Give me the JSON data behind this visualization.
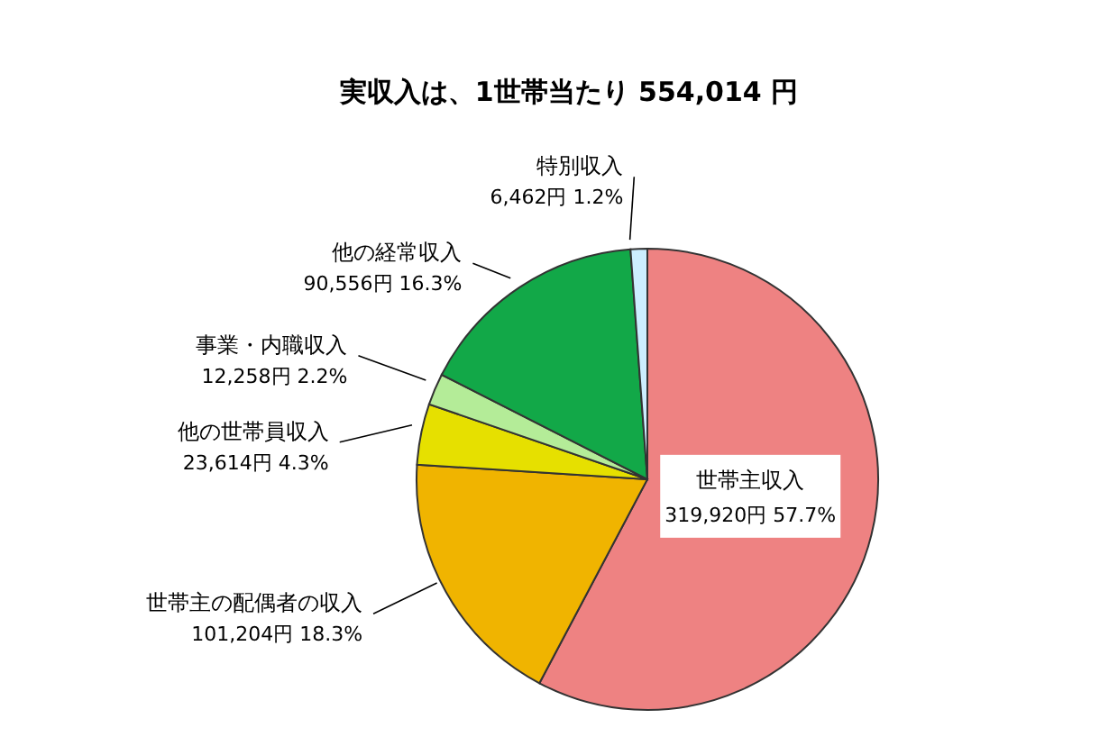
{
  "chart_data": {
    "type": "pie",
    "title": "実収入は、1世帯当たり 554,014 円",
    "categories": [
      "世帯主収入",
      "世帯主の配偶者の収入",
      "他の世帯員収入",
      "事業・内職収入",
      "他の経常収入",
      "特別収入"
    ],
    "values": [
      319920,
      101204,
      23614,
      12258,
      90556,
      6462
    ],
    "value_labels": [
      "319,920円 57.7%",
      "101,204円 18.3%",
      "23,614円 4.3%",
      "12,258円 2.2%",
      "90,556円 16.3%",
      "6,462円 1.2%"
    ],
    "colors": [
      "#ee8282",
      "#f0b400",
      "#e6e000",
      "#b4ec98",
      "#12a848",
      "#cceeff"
    ],
    "legend": false
  }
}
